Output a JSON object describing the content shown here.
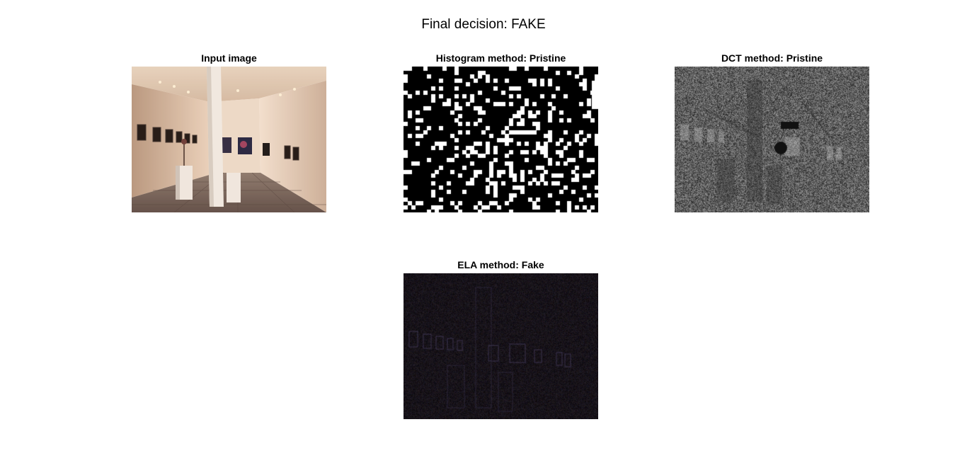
{
  "figure": {
    "title": "Final decision: FAKE"
  },
  "panels": {
    "input": {
      "title": "Input image"
    },
    "histogram": {
      "title": "Histogram method: Pristine"
    },
    "dct": {
      "title": "DCT method: Pristine"
    },
    "ela": {
      "title": "ELA method: Fake"
    }
  },
  "colors": {
    "background": "#ffffff",
    "wall": "#e8d4bf",
    "floor": "#7a6a60",
    "binary_on": "#ffffff",
    "binary_off": "#000000",
    "dct_gray": "#808080",
    "ela_dark": "#0d0a10"
  }
}
